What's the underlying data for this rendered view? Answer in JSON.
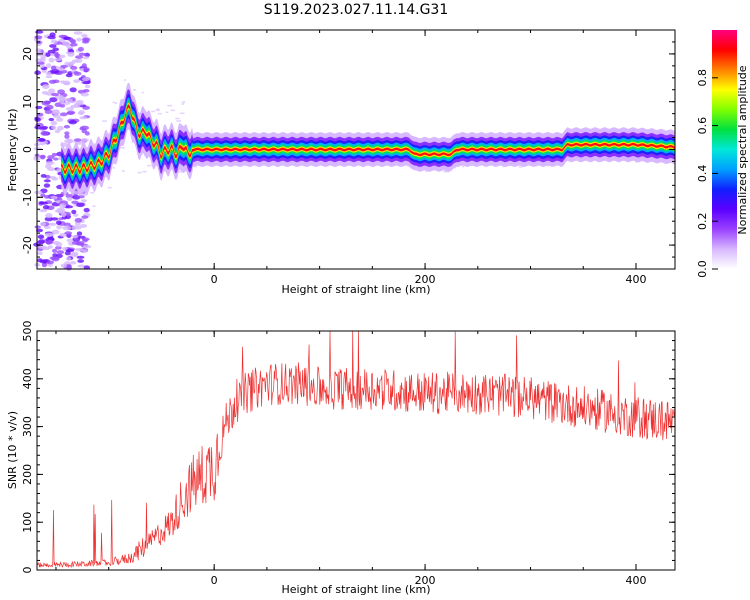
{
  "figure_title": "S119.2023.027.11.14.G31",
  "chart_data": [
    {
      "type": "heatmap",
      "title": "",
      "xlabel": "Height of straight line (km)",
      "ylabel": "Frequency (Hz)",
      "xlim": [
        -168,
        437
      ],
      "ylim": [
        -25,
        25
      ],
      "xticks": [
        0,
        200,
        400
      ],
      "yticks": [
        -20,
        -10,
        0,
        10,
        20
      ],
      "colorbar": {
        "label": "Normalized spectral amplitude",
        "range": [
          0,
          1
        ],
        "ticks": [
          0.0,
          0.2,
          0.4,
          0.6,
          0.8
        ],
        "colormap": [
          "#ffffff",
          "#d8b8ff",
          "#9a40ff",
          "#5a00ff",
          "#1020ff",
          "#00a0ff",
          "#00e8d8",
          "#00e040",
          "#80ff00",
          "#ffff00",
          "#ff8000",
          "#ff0000",
          "#ff0080"
        ]
      },
      "ridge": {
        "x": [
          -140,
          -125,
          -110,
          -100,
          -90,
          -85,
          -80,
          -75,
          -70,
          -65,
          -60,
          -55,
          -50,
          -45,
          -40,
          -35,
          -30,
          -25,
          -20,
          0,
          50,
          100,
          150,
          185,
          190,
          220,
          225,
          230,
          260,
          290,
          300,
          330,
          335,
          400,
          437
        ],
        "y": [
          -4,
          -4,
          -3,
          -1,
          4,
          7,
          9,
          5,
          3,
          4,
          2,
          1,
          -1,
          0,
          0,
          -1,
          1,
          -1,
          0,
          0,
          0,
          0,
          0,
          0,
          -1,
          -1,
          -1,
          0,
          0,
          0,
          0,
          0,
          1,
          1,
          0.5
        ]
      }
    },
    {
      "type": "line",
      "title": "",
      "xlabel": "Height of straight line (km)",
      "ylabel": "SNR (10 * v/v)",
      "xlim": [
        -168,
        437
      ],
      "ylim": [
        0,
        500
      ],
      "xticks": [
        0,
        200,
        400
      ],
      "yticks": [
        0,
        100,
        200,
        300,
        400,
        500
      ],
      "color": "#ee3030",
      "envelope": {
        "x": [
          -168,
          -130,
          -100,
          -80,
          -60,
          -40,
          -30,
          -20,
          -10,
          0,
          10,
          20,
          30,
          50,
          80,
          100,
          150,
          200,
          250,
          300,
          350,
          400,
          437
        ],
        "y": [
          10,
          12,
          15,
          25,
          60,
          100,
          150,
          180,
          200,
          220,
          300,
          350,
          370,
          390,
          390,
          380,
          380,
          370,
          370,
          360,
          340,
          320,
          310
        ]
      }
    }
  ]
}
